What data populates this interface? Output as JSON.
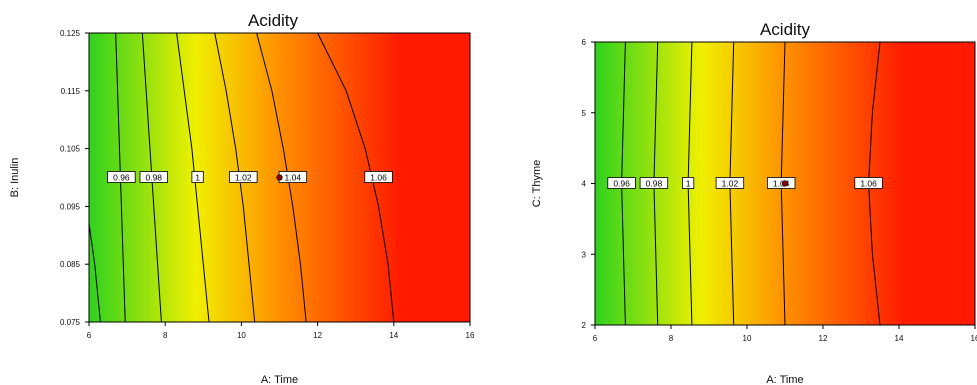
{
  "chart_data": [
    {
      "type": "contour",
      "title": "Acidity",
      "xlabel": "A: Time",
      "ylabel": "B: Inulin",
      "xlim": [
        6,
        16
      ],
      "ylim": [
        0.075,
        0.125
      ],
      "xticks": [
        "6",
        "8",
        "10",
        "12",
        "14",
        "16"
      ],
      "yticks": [
        "0.075",
        "0.085",
        "0.095",
        "0.105",
        "0.115",
        "0.125"
      ],
      "colormap": [
        "#2fd21e",
        "#f0f000",
        "#ff9000",
        "#ff1a00"
      ],
      "contours": [
        {
          "label": "0.96",
          "x": [
            6.7,
            6.75,
            6.8,
            6.85,
            6.9,
            6.95
          ]
        },
        {
          "label": "0.98",
          "x": [
            7.4,
            7.5,
            7.6,
            7.7,
            7.8,
            7.9
          ]
        },
        {
          "label": "1",
          "x": [
            8.3,
            8.5,
            8.7,
            8.85,
            9.0,
            9.15
          ]
        },
        {
          "label": "1.02",
          "x": [
            9.3,
            9.6,
            9.85,
            10.05,
            10.2,
            10.35
          ]
        },
        {
          "label": "1.04",
          "x": [
            10.4,
            10.8,
            11.1,
            11.35,
            11.55,
            11.7
          ]
        },
        {
          "label": "1.06",
          "x": [
            12.0,
            12.75,
            13.25,
            13.6,
            13.85,
            14.0
          ]
        }
      ],
      "contour_y": [
        0.125,
        0.115,
        0.105,
        0.095,
        0.085,
        0.075
      ],
      "extra_contour": {
        "label": "",
        "x": [
          6.0,
          6.15,
          6.3
        ],
        "y": [
          0.092,
          0.085,
          0.075
        ]
      },
      "design_point": {
        "x": 11,
        "y": 0.1
      }
    },
    {
      "type": "contour",
      "title": "Acidity",
      "xlabel": "A: Time",
      "ylabel": "C: Thyme",
      "xlim": [
        6,
        16
      ],
      "ylim": [
        2,
        6
      ],
      "xticks": [
        "6",
        "8",
        "10",
        "12",
        "14",
        "16"
      ],
      "yticks": [
        "2",
        "3",
        "4",
        "5",
        "6"
      ],
      "colormap": [
        "#2fd21e",
        "#f0f000",
        "#ff9000",
        "#ff1a00"
      ],
      "contours": [
        {
          "label": "0.96",
          "x": [
            6.8,
            6.75,
            6.7,
            6.75,
            6.8
          ]
        },
        {
          "label": "0.98",
          "x": [
            7.65,
            7.6,
            7.55,
            7.6,
            7.65
          ]
        },
        {
          "label": "1",
          "x": [
            8.55,
            8.5,
            8.45,
            8.5,
            8.55
          ]
        },
        {
          "label": "1.02",
          "x": [
            9.65,
            9.6,
            9.55,
            9.6,
            9.65
          ]
        },
        {
          "label": "1.04",
          "x": [
            11.0,
            10.95,
            10.9,
            10.95,
            11.0
          ]
        },
        {
          "label": "1.06",
          "x": [
            13.5,
            13.3,
            13.2,
            13.3,
            13.5
          ]
        }
      ],
      "contour_y": [
        6,
        5,
        4,
        3,
        2
      ],
      "design_point": {
        "x": 11,
        "y": 4
      }
    }
  ]
}
